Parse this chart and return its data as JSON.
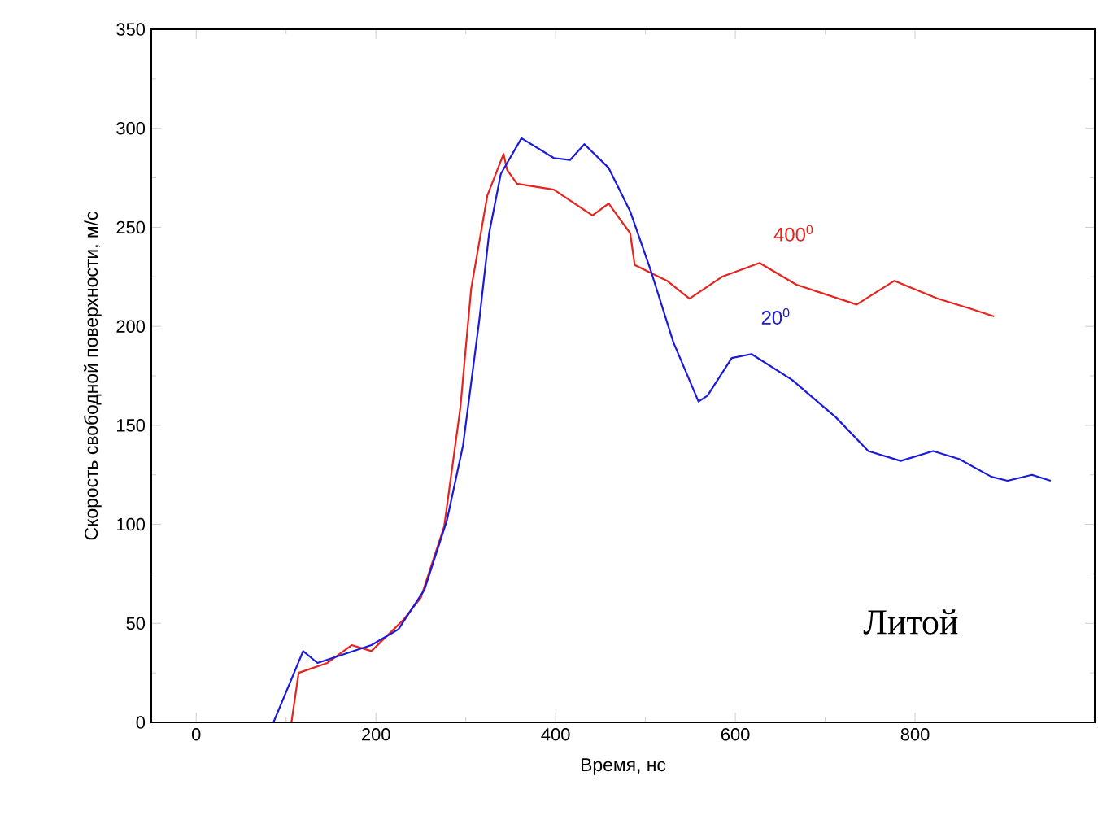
{
  "chart_data": {
    "type": "line",
    "xlabel": "Время, нс",
    "ylabel": "Скорость свободной поверхности, м/с",
    "xlim": [
      -50,
      1000
    ],
    "ylim": [
      0,
      350
    ],
    "xticks": [
      0,
      200,
      400,
      600,
      800
    ],
    "yticks": [
      0,
      50,
      100,
      150,
      200,
      250,
      300,
      350
    ],
    "grid": false,
    "legend": false,
    "marker": "none",
    "line_style": "solid",
    "annotations": [
      "Литой"
    ],
    "series": [
      {
        "name": "400$^{0}$",
        "color": "#e8221c",
        "x": [
          106,
          114,
          146,
          173,
          195,
          231,
          250,
          276,
          294,
          306,
          324,
          342,
          346,
          357,
          398,
          441,
          459,
          483,
          488,
          524,
          549,
          585,
          627,
          668,
          735,
          777,
          825,
          861,
          888
        ],
        "values": [
          0,
          25,
          30,
          39,
          36,
          52,
          63,
          99,
          159,
          219,
          266,
          287,
          279,
          272,
          269,
          256,
          262,
          247,
          231,
          223,
          214,
          225,
          232,
          221,
          211,
          223,
          214,
          209,
          205
        ]
      },
      {
        "name": "20$^{0}$",
        "color": "#1a1adc",
        "x": [
          86,
          119,
          135,
          195,
          225,
          254,
          279,
          297,
          315,
          326,
          339,
          362,
          398,
          416,
          432,
          459,
          483,
          506,
          531,
          559,
          569,
          596,
          618,
          663,
          712,
          748,
          784,
          820,
          849,
          885,
          903,
          930,
          951
        ],
        "values": [
          0,
          36,
          30,
          39,
          47,
          67,
          102,
          140,
          203,
          247,
          277,
          295,
          285,
          284,
          292,
          280,
          258,
          228,
          192,
          162,
          165,
          184,
          186,
          173,
          154,
          137,
          132,
          137,
          133,
          124,
          122,
          125,
          122
        ]
      }
    ]
  }
}
